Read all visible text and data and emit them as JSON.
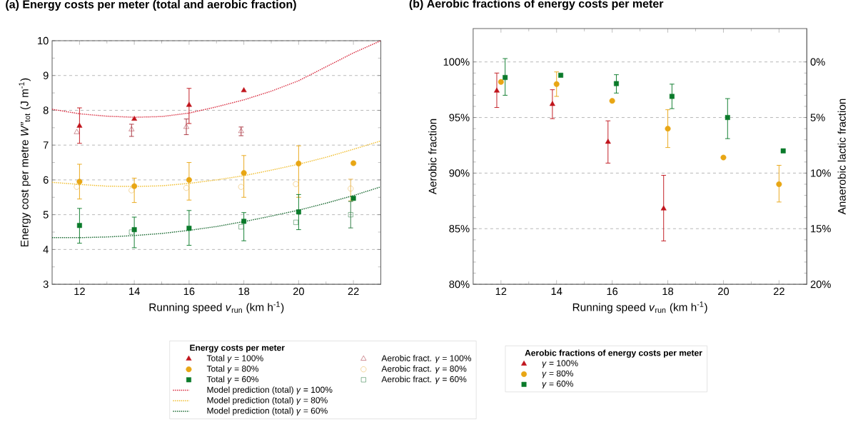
{
  "chart_data": [
    {
      "type": "scatter",
      "title": "(a)   Energy costs per meter (total and aerobic fraction)",
      "xlabel": "Running speed *v*$_{run}$ (km h$^{-1}$)",
      "ylabel": "Energy cost per metre *W″*$_{tot}$ (J m$^{-1}$)",
      "xlim": [
        11,
        23
      ],
      "xticks": [
        12,
        14,
        16,
        18,
        20,
        22
      ],
      "ylim": [
        3,
        10
      ],
      "yticks": [
        3,
        4,
        5,
        6,
        7,
        8,
        9,
        10
      ],
      "grid": "y",
      "legend": "bottom",
      "legend_title": "Energy costs per meter",
      "series": [
        {
          "name": "Total *γ* = 100%",
          "color": "#c0141c",
          "marker": "triangle",
          "x": [
            12,
            14,
            16,
            18
          ],
          "values": [
            7.55,
            7.75,
            8.15,
            8.57
          ],
          "errors": [
            [
              7.05,
              8.07
            ],
            null,
            [
              7.62,
              8.63
            ],
            null
          ]
        },
        {
          "name": "Total *γ* =  80%",
          "color": "#e8a614",
          "marker": "circle",
          "x": [
            12,
            14,
            16,
            18,
            20,
            22
          ],
          "values": [
            5.95,
            5.82,
            6.0,
            6.2,
            6.47,
            6.48
          ],
          "errors": [
            [
              5.45,
              6.45
            ],
            [
              5.35,
              6.05
            ],
            [
              5.42,
              6.5
            ],
            [
              5.5,
              6.7
            ],
            [
              5.5,
              6.98
            ],
            null
          ]
        },
        {
          "name": "Total *γ* =  60%",
          "color": "#0a7a2a",
          "marker": "square",
          "x": [
            12,
            14,
            16,
            18,
            20,
            22
          ],
          "values": [
            4.69,
            4.57,
            4.61,
            4.81,
            5.08,
            5.47
          ],
          "errors": [
            [
              4.18,
              5.18
            ],
            [
              4.05,
              4.93
            ],
            [
              4.12,
              5.12
            ],
            [
              4.25,
              5.06
            ],
            [
              4.57,
              5.58
            ],
            null
          ]
        },
        {
          "name": "Aerobic fract. *γ* = 100%",
          "color": "#a8303c",
          "marker": "triangle",
          "x": [
            11.9,
            13.9,
            15.9,
            17.9
          ],
          "values": [
            7.37,
            7.45,
            7.52,
            7.4
          ],
          "errors": [
            null,
            [
              7.25,
              7.6
            ],
            [
              7.3,
              7.75
            ],
            [
              7.27,
              7.52
            ]
          ]
        },
        {
          "name": "Aerobic fract. *γ* =  80%",
          "color": "#e8b44c",
          "marker": "circle",
          "x": [
            11.9,
            13.9,
            15.9,
            17.9,
            19.9,
            21.9
          ],
          "values": [
            5.8,
            5.7,
            5.77,
            5.8,
            5.88,
            5.75
          ],
          "errors": [
            null,
            null,
            null,
            null,
            null,
            [
              5.4,
              6.02
            ]
          ]
        },
        {
          "name": "Aerobic fract. *γ* =  60%",
          "color": "#2a7a40",
          "marker": "square",
          "x": [
            13.9,
            17.9,
            19.9,
            21.9
          ],
          "values": [
            4.5,
            4.65,
            4.78,
            5.0
          ],
          "errors": [
            null,
            null,
            null,
            [
              4.62,
              5.38
            ]
          ]
        },
        {
          "name": "Model prediction (total) *γ* = 100%",
          "color": "#d8283c",
          "type": "line",
          "marker": "none",
          "line_style": "dotted",
          "x": [
            11,
            12,
            13,
            14,
            15,
            16,
            17,
            18,
            19,
            20,
            21,
            22,
            23
          ],
          "values": [
            8.03,
            7.9,
            7.83,
            7.8,
            7.82,
            7.92,
            8.1,
            8.3,
            8.55,
            8.85,
            9.25,
            9.65,
            10.0
          ]
        },
        {
          "name": "Model prediction (total) *γ* =  80%",
          "color": "#f0be30",
          "type": "line",
          "marker": "none",
          "line_style": "dotted",
          "x": [
            11,
            12,
            13,
            14,
            15,
            16,
            17,
            18,
            19,
            20,
            21,
            22,
            23
          ],
          "values": [
            5.93,
            5.87,
            5.82,
            5.81,
            5.83,
            5.9,
            6.0,
            6.12,
            6.28,
            6.45,
            6.65,
            6.88,
            7.12
          ]
        },
        {
          "name": "Model prediction (total) *γ* =   60%",
          "color": "#1a6a32",
          "type": "line",
          "marker": "none",
          "line_style": "dotted",
          "x": [
            11,
            12,
            13,
            14,
            15,
            16,
            17,
            18,
            19,
            20,
            21,
            22,
            23
          ],
          "values": [
            4.34,
            4.34,
            4.36,
            4.4,
            4.46,
            4.55,
            4.66,
            4.8,
            4.96,
            5.13,
            5.33,
            5.55,
            5.8
          ]
        }
      ]
    },
    {
      "type": "scatter",
      "title": "(b)   Aerobic fractions of energy costs per meter",
      "xlabel": "Running speed *v*$_{run}$ (km h$^{-1}$)",
      "ylabel": "Aerobic fraction",
      "y2label": "Anaerobic lactic fraction",
      "xlim": [
        11,
        23
      ],
      "xticks": [
        12,
        14,
        16,
        18,
        20,
        22
      ],
      "ylim": [
        80,
        103
      ],
      "yticks": [
        {
          "value": 80,
          "label": "80%"
        },
        {
          "value": 85,
          "label": "85%"
        },
        {
          "value": 90,
          "label": "90%"
        },
        {
          "value": 95,
          "label": "95%"
        },
        {
          "value": 100,
          "label": "100%"
        }
      ],
      "y2lim": [
        20,
        -3
      ],
      "y2ticks": [
        {
          "value": 0,
          "label": "0%"
        },
        {
          "value": 5,
          "label": "5%"
        },
        {
          "value": 10,
          "label": "10%"
        },
        {
          "value": 15,
          "label": "15%"
        },
        {
          "value": 20,
          "label": "20%"
        }
      ],
      "grid": "y",
      "legend": "bottom",
      "legend_title": "Aerobic fractions of energy costs per meter",
      "series": [
        {
          "name": "*γ* = 100%",
          "color": "#c0141c",
          "marker": "triangle",
          "x": [
            11.85,
            13.85,
            15.85,
            17.85
          ],
          "values": [
            97.4,
            96.2,
            92.8,
            86.8
          ],
          "errors": [
            [
              95.9,
              99.0
            ],
            [
              94.9,
              97.5
            ],
            [
              90.9,
              94.7
            ],
            [
              83.9,
              89.8
            ]
          ]
        },
        {
          "name": "*γ* =  80%",
          "color": "#e8a614",
          "marker": "circle",
          "x": [
            12,
            14,
            16,
            18,
            20,
            22
          ],
          "values": [
            98.2,
            98.0,
            96.5,
            94.0,
            91.4,
            89.0
          ],
          "errors": [
            null,
            [
              96.9,
              99.1
            ],
            null,
            [
              92.3,
              95.7
            ],
            null,
            [
              87.4,
              90.7
            ]
          ]
        },
        {
          "name": "*γ* =  60%",
          "color": "#0a7a2a",
          "marker": "square",
          "x": [
            12.15,
            14.15,
            16.15,
            18.15,
            20.15,
            22.15
          ],
          "values": [
            98.6,
            98.8,
            98.05,
            96.9,
            95.0,
            92.0
          ],
          "errors": [
            [
              97.0,
              100.3
            ],
            null,
            [
              97.2,
              98.85
            ],
            [
              95.8,
              98.0
            ],
            [
              93.1,
              96.7
            ],
            null
          ]
        }
      ]
    }
  ]
}
